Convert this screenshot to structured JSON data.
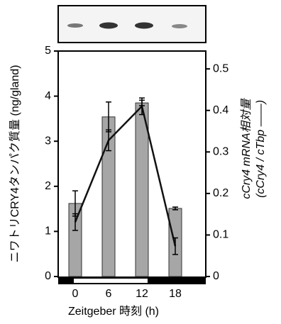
{
  "chart_data": {
    "type": "bar",
    "categories": [
      "0",
      "6",
      "12",
      "18"
    ],
    "series": [
      {
        "type": "bar",
        "color": "#a6a6a6",
        "values": [
          1.62,
          3.54,
          3.85,
          1.51
        ],
        "errors": [
          0.28,
          0.33,
          0.06,
          0.03
        ]
      },
      {
        "type": "line",
        "axis": "y2",
        "color": "#111111",
        "values": [
          0.131,
          0.328,
          0.41,
          0.073
        ],
        "errors": [
          0.02,
          0.025,
          0.02,
          0.02
        ]
      }
    ],
    "ylim": [
      0,
      5
    ],
    "yticks": [
      0,
      1,
      2,
      3,
      4,
      5
    ],
    "y2lim": [
      0,
      0.543
    ],
    "y2ticks": [
      0,
      0.1,
      0.2,
      0.3,
      0.4,
      0.5
    ],
    "ylabel": "ニワトリCRY4タンパク質量 (ng/gland)",
    "y2label": [
      "cCry4 mRNA相対量",
      "(cCry4 / cTbp ——)"
    ],
    "xlabel": "Zeitgeber 時刻 (h)"
  }
}
